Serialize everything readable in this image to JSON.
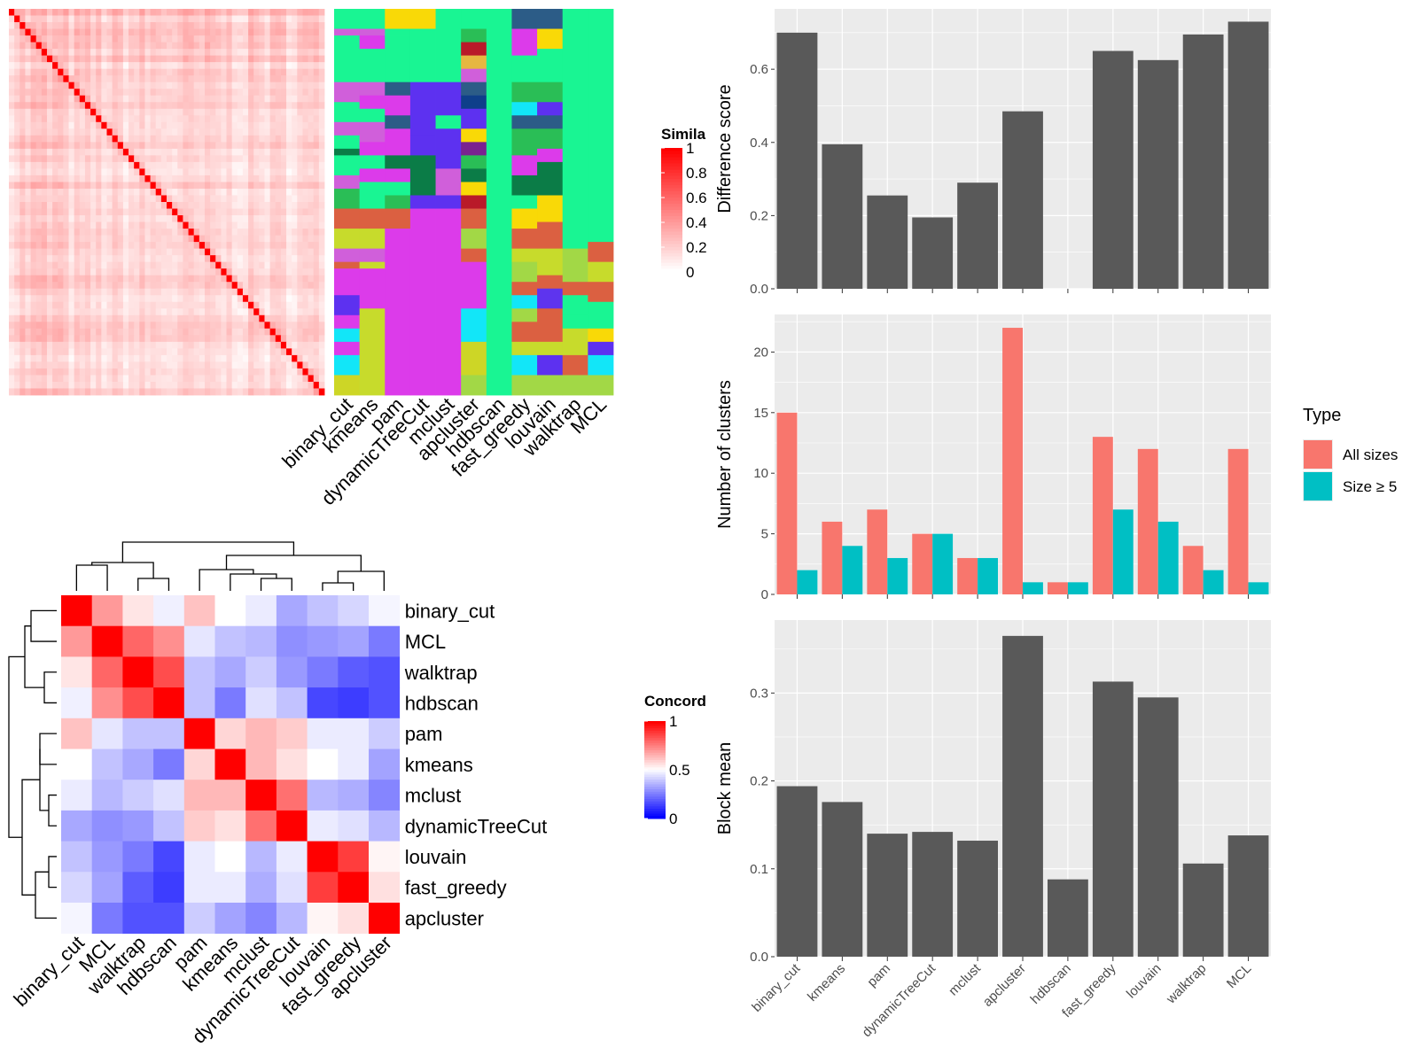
{
  "methods": [
    "binary_cut",
    "kmeans",
    "pam",
    "dynamicTreeCut",
    "mclust",
    "apcluster",
    "hdbscan",
    "fast_greedy",
    "louvain",
    "walktrap",
    "MCL"
  ],
  "colors": {
    "bar_grey": "#595959",
    "panel_bg": "#EBEBEB",
    "grid": "#FFFFFF",
    "all_sizes": "#F8766D",
    "size_ge5": "#00BFC4",
    "sim_high": "#FF0000",
    "conc_low": "#0000FF"
  },
  "similarity_heatmap": {
    "legend_title": "Simila",
    "legend_ticks": [
      "1",
      "0.8",
      "0.6",
      "0.4",
      "0.2",
      "0"
    ],
    "n_terms": 58
  },
  "cluster_assignment": {
    "columns": [
      "binary_cut",
      "kmeans",
      "pam",
      "dynamicTreeCut",
      "mclust",
      "apcluster",
      "hdbscan",
      "fast_greedy",
      "louvain",
      "walktrap",
      "MCL"
    ]
  },
  "concordance_heatmap": {
    "legend_title": "Concord",
    "legend_ticks": [
      "1",
      "0.5",
      "0"
    ],
    "row_labels": [
      "binary_cut",
      "MCL",
      "walktrap",
      "hdbscan",
      "pam",
      "kmeans",
      "mclust",
      "dynamicTreeCut",
      "louvain",
      "fast_greedy",
      "apcluster"
    ],
    "col_labels": [
      "binary_cut",
      "MCL",
      "walktrap",
      "hdbscan",
      "pam",
      "kmeans",
      "mclust",
      "dynamicTreeCut",
      "louvain",
      "fast_greedy",
      "apcluster"
    ],
    "matrix": [
      [
        1.0,
        0.7,
        0.55,
        0.47,
        0.62,
        0.5,
        0.46,
        0.33,
        0.38,
        0.42,
        0.48
      ],
      [
        0.7,
        1.0,
        0.8,
        0.72,
        0.45,
        0.38,
        0.36,
        0.28,
        0.3,
        0.32,
        0.24
      ],
      [
        0.55,
        0.8,
        1.0,
        0.85,
        0.38,
        0.33,
        0.4,
        0.3,
        0.24,
        0.18,
        0.16
      ],
      [
        0.47,
        0.72,
        0.85,
        1.0,
        0.38,
        0.24,
        0.44,
        0.38,
        0.14,
        0.12,
        0.16
      ],
      [
        0.62,
        0.45,
        0.38,
        0.38,
        1.0,
        0.58,
        0.64,
        0.6,
        0.46,
        0.46,
        0.4
      ],
      [
        0.5,
        0.38,
        0.33,
        0.24,
        0.58,
        1.0,
        0.64,
        0.56,
        0.5,
        0.46,
        0.32
      ],
      [
        0.46,
        0.36,
        0.4,
        0.44,
        0.64,
        0.64,
        1.0,
        0.78,
        0.36,
        0.34,
        0.26
      ],
      [
        0.33,
        0.28,
        0.3,
        0.38,
        0.6,
        0.56,
        0.78,
        1.0,
        0.46,
        0.44,
        0.36
      ],
      [
        0.38,
        0.3,
        0.24,
        0.14,
        0.46,
        0.5,
        0.36,
        0.46,
        1.0,
        0.88,
        0.52
      ],
      [
        0.42,
        0.32,
        0.18,
        0.12,
        0.46,
        0.46,
        0.34,
        0.44,
        0.88,
        1.0,
        0.56
      ],
      [
        0.48,
        0.24,
        0.16,
        0.16,
        0.4,
        0.32,
        0.26,
        0.36,
        0.52,
        0.56,
        1.0
      ]
    ]
  },
  "chart_data": [
    {
      "type": "bar",
      "categories": [
        "binary_cut",
        "kmeans",
        "pam",
        "dynamicTreeCut",
        "mclust",
        "apcluster",
        "hdbscan",
        "fast_greedy",
        "louvain",
        "walktrap",
        "MCL"
      ],
      "values": [
        0.7,
        0.395,
        0.255,
        0.195,
        0.29,
        0.485,
        0,
        0.65,
        0.625,
        0.695,
        0.73
      ],
      "xlabel": "",
      "ylabel": "Difference score",
      "ylim": [
        0,
        0.765
      ],
      "yticks": [
        0,
        0.2,
        0.4,
        0.6
      ],
      "yticklabels": [
        "0.0",
        "0.2",
        "0.4",
        "0.6"
      ],
      "grid": true
    },
    {
      "type": "bar",
      "categories": [
        "binary_cut",
        "kmeans",
        "pam",
        "dynamicTreeCut",
        "mclust",
        "apcluster",
        "hdbscan",
        "fast_greedy",
        "louvain",
        "walktrap",
        "MCL"
      ],
      "series": [
        {
          "name": "All sizes",
          "values": [
            15,
            6,
            7,
            5,
            3,
            22,
            1,
            13,
            12,
            4,
            12
          ]
        },
        {
          "name": "Size ≥ 5",
          "values": [
            2,
            4,
            3,
            5,
            3,
            1,
            1,
            7,
            6,
            2,
            1
          ]
        }
      ],
      "xlabel": "",
      "ylabel": "Number of clusters",
      "ylim": [
        0,
        23.1
      ],
      "yticks": [
        0,
        5,
        10,
        15,
        20
      ],
      "yticklabels": [
        "0",
        "5",
        "10",
        "15",
        "20"
      ],
      "legend_title": "Type",
      "legend_position": "right",
      "grid": true
    },
    {
      "type": "bar",
      "categories": [
        "binary_cut",
        "kmeans",
        "pam",
        "dynamicTreeCut",
        "mclust",
        "apcluster",
        "hdbscan",
        "fast_greedy",
        "louvain",
        "walktrap",
        "MCL"
      ],
      "values": [
        0.194,
        0.176,
        0.14,
        0.142,
        0.132,
        0.365,
        0.088,
        0.313,
        0.295,
        0.106,
        0.138
      ],
      "xlabel": "",
      "ylabel": "Block mean",
      "ylim": [
        0,
        0.383
      ],
      "yticks": [
        0,
        0.1,
        0.2,
        0.3
      ],
      "yticklabels": [
        "0.0",
        "0.1",
        "0.2",
        "0.3"
      ],
      "grid": true
    }
  ]
}
